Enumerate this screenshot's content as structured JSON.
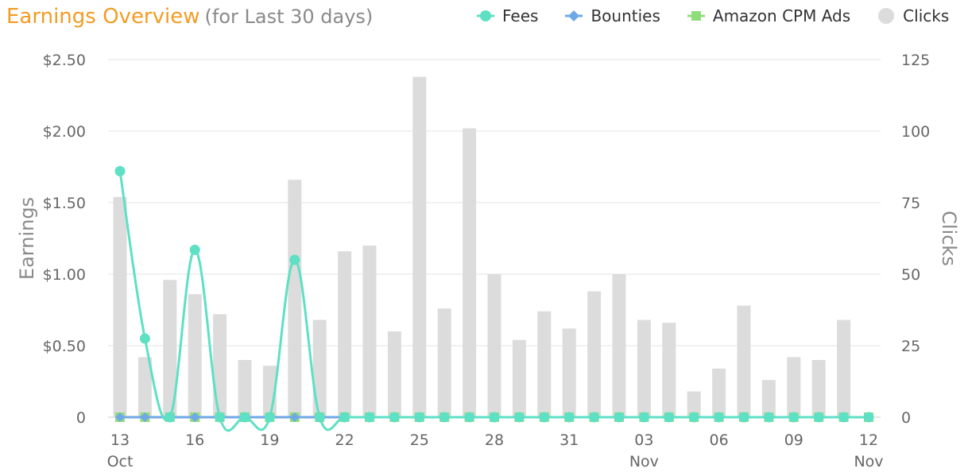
{
  "title": {
    "main": "Earnings Overview",
    "sub": "(for Last 30 days)"
  },
  "legend": [
    {
      "label": "Fees",
      "marker": "circle-line",
      "color": "#5ee0c4"
    },
    {
      "label": "Bounties",
      "marker": "diamond-line",
      "color": "#6fa8e6"
    },
    {
      "label": "Amazon CPM Ads",
      "marker": "square-line",
      "color": "#8fdd7a"
    },
    {
      "label": "Clicks",
      "marker": "circle",
      "color": "#dcdcdc"
    }
  ],
  "chart_data": {
    "type": "bar",
    "x": [
      "13",
      "14",
      "15",
      "16",
      "17",
      "18",
      "19",
      "20",
      "21",
      "22",
      "23",
      "24",
      "25",
      "26",
      "27",
      "28",
      "29",
      "30",
      "31",
      "01",
      "02",
      "03",
      "04",
      "05",
      "06",
      "07",
      "08",
      "09",
      "10",
      "11",
      "12"
    ],
    "x_tick_labels": [
      {
        "index": 0,
        "label": "13",
        "sublabel": "Oct"
      },
      {
        "index": 3,
        "label": "16",
        "sublabel": ""
      },
      {
        "index": 6,
        "label": "19",
        "sublabel": ""
      },
      {
        "index": 9,
        "label": "22",
        "sublabel": ""
      },
      {
        "index": 12,
        "label": "25",
        "sublabel": ""
      },
      {
        "index": 15,
        "label": "28",
        "sublabel": ""
      },
      {
        "index": 18,
        "label": "31",
        "sublabel": ""
      },
      {
        "index": 21,
        "label": "03",
        "sublabel": "Nov"
      },
      {
        "index": 24,
        "label": "06",
        "sublabel": ""
      },
      {
        "index": 27,
        "label": "09",
        "sublabel": ""
      },
      {
        "index": 30,
        "label": "12",
        "sublabel": "Nov"
      }
    ],
    "y_left": {
      "label": "Earnings",
      "range": [
        0,
        2.5
      ],
      "ticks": [
        "0",
        "$0.50",
        "$1.00",
        "$1.50",
        "$2.00",
        "$2.50"
      ]
    },
    "y_right": {
      "label": "Clicks",
      "range": [
        0,
        125
      ],
      "ticks": [
        "0",
        "25",
        "50",
        "75",
        "100",
        "125"
      ]
    },
    "series": [
      {
        "name": "Clicks",
        "kind": "bar",
        "axis": "right",
        "color": "#dcdcdc",
        "values": [
          77,
          21,
          48,
          43,
          36,
          20,
          18,
          83,
          34,
          58,
          60,
          30,
          119,
          38,
          101,
          50,
          27,
          37,
          31,
          44,
          50,
          34,
          33,
          9,
          17,
          39,
          13,
          21,
          20,
          34,
          null
        ]
      },
      {
        "name": "Fees",
        "kind": "line",
        "axis": "left",
        "color": "#5ee0c4",
        "values": [
          1.72,
          0.55,
          0,
          1.17,
          0,
          0,
          0,
          1.1,
          0,
          0,
          0,
          0,
          0,
          0,
          0,
          0,
          0,
          0,
          0,
          0,
          0,
          0,
          0,
          0,
          0,
          0,
          0,
          0,
          0,
          0,
          0
        ]
      },
      {
        "name": "Bounties",
        "kind": "line",
        "axis": "left",
        "color": "#6fa8e6",
        "values": [
          0,
          0,
          0,
          0,
          0,
          0,
          0,
          0,
          0,
          0,
          0,
          0,
          0,
          0,
          0,
          0,
          0,
          0,
          0,
          0,
          0,
          0,
          0,
          0,
          0,
          0,
          0,
          0,
          0,
          0,
          0
        ]
      },
      {
        "name": "Amazon CPM Ads",
        "kind": "line",
        "axis": "left",
        "color": "#8fdd7a",
        "values": [
          0,
          0,
          0,
          0,
          0,
          0,
          0,
          0,
          0,
          0,
          0,
          0,
          0,
          0,
          0,
          0,
          0,
          0,
          0,
          0,
          0,
          0,
          0,
          0,
          0,
          0,
          0,
          0,
          0,
          0,
          0
        ]
      }
    ],
    "grid": true,
    "legend_position": "top-right"
  }
}
